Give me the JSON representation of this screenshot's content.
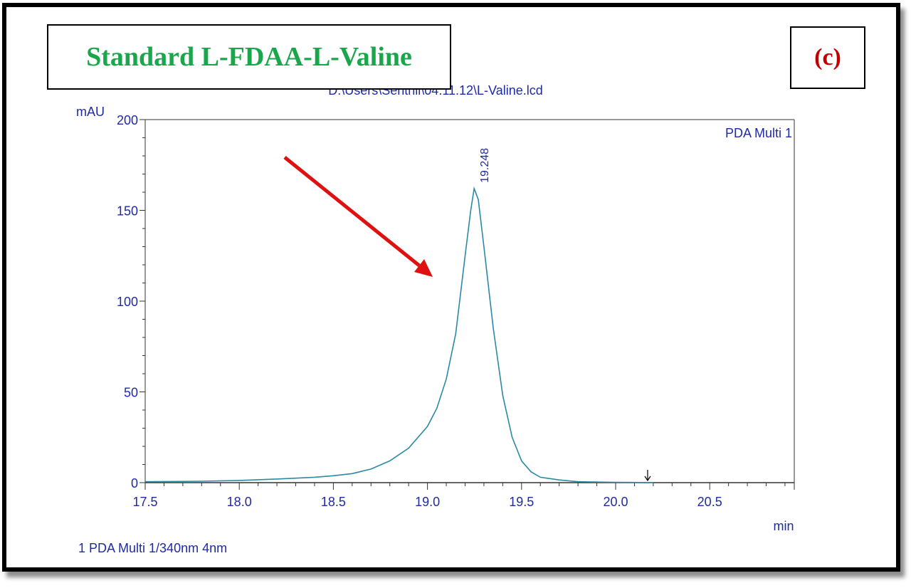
{
  "figure": {
    "title": "Standard L-FDAA-L-Valine",
    "panel_label": "(c)",
    "file_path": "D:\\Users\\Senthil\\04.11.12\\L-Valine.lcd",
    "channel_label": "PDA Multi 1",
    "footer": "1  PDA Multi 1/340nm 4nm",
    "colors": {
      "title": "#1aa64a",
      "panel_label": "#c00000",
      "trace": "#2a8aa6",
      "axis_text": "#1f2aa6",
      "arrow": "#e01010"
    }
  },
  "chart_data": {
    "type": "line",
    "xlabel": "min",
    "ylabel": "mAU",
    "xlim": [
      17.5,
      21.0
    ],
    "ylim": [
      0,
      200
    ],
    "x_ticks": [
      "17.5",
      "18.0",
      "18.5",
      "19.0",
      "19.5",
      "20.0",
      "20.5"
    ],
    "y_ticks": [
      "0",
      "50",
      "100",
      "150",
      "200"
    ],
    "peak_annotations": [
      {
        "x": 19.248,
        "y": 162,
        "label": "19.248"
      }
    ],
    "end_marker_x": 20.17,
    "series": [
      {
        "name": "PDA Multi 1",
        "x": [
          17.5,
          17.8,
          18.0,
          18.2,
          18.4,
          18.5,
          18.6,
          18.7,
          18.8,
          18.9,
          19.0,
          19.05,
          19.1,
          19.15,
          19.2,
          19.23,
          19.248,
          19.27,
          19.3,
          19.35,
          19.4,
          19.45,
          19.5,
          19.55,
          19.6,
          19.7,
          19.8,
          20.0,
          20.2
        ],
        "y": [
          0.5,
          0.8,
          1.2,
          2,
          3,
          3.8,
          5,
          7.5,
          12,
          19,
          31,
          41,
          57,
          82,
          125,
          150,
          162,
          156,
          130,
          85,
          48,
          25,
          12,
          6,
          3,
          1.5,
          0.5,
          0.2,
          0
        ]
      }
    ]
  }
}
